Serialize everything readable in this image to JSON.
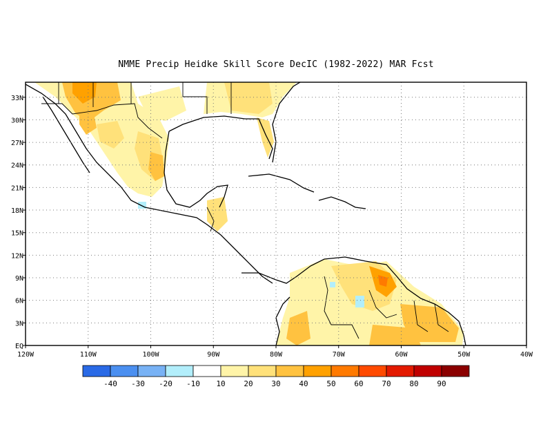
{
  "title": "NMME Precip Heidke Skill Score DecIC (1982-2022) MAR Fcst",
  "map": {
    "lon_range": [
      -120,
      -40
    ],
    "lat_range": [
      0,
      35
    ],
    "lon_ticks": [
      "120W",
      "110W",
      "100W",
      "90W",
      "80W",
      "70W",
      "60W",
      "50W",
      "40W"
    ],
    "lat_ticks": [
      "EQ",
      "3N",
      "6N",
      "9N",
      "12N",
      "15N",
      "18N",
      "21N",
      "24N",
      "27N",
      "30N",
      "33N"
    ],
    "grid": "dotted"
  },
  "colorbar": {
    "colors": [
      "#2a6ae6",
      "#4b8ff0",
      "#78b2f5",
      "#b2eefb",
      "#ffffff",
      "#fff4a8",
      "#ffe17a",
      "#ffc240",
      "#ffa100",
      "#ff7a00",
      "#ff4a00",
      "#e31a00",
      "#c00000",
      "#8b0000"
    ],
    "labels": [
      "-40",
      "-30",
      "-20",
      "-10",
      "10",
      "20",
      "30",
      "40",
      "50",
      "60",
      "70",
      "80",
      "90"
    ]
  },
  "colors": {
    "land_outline": "#000000",
    "grid": "#777777"
  }
}
